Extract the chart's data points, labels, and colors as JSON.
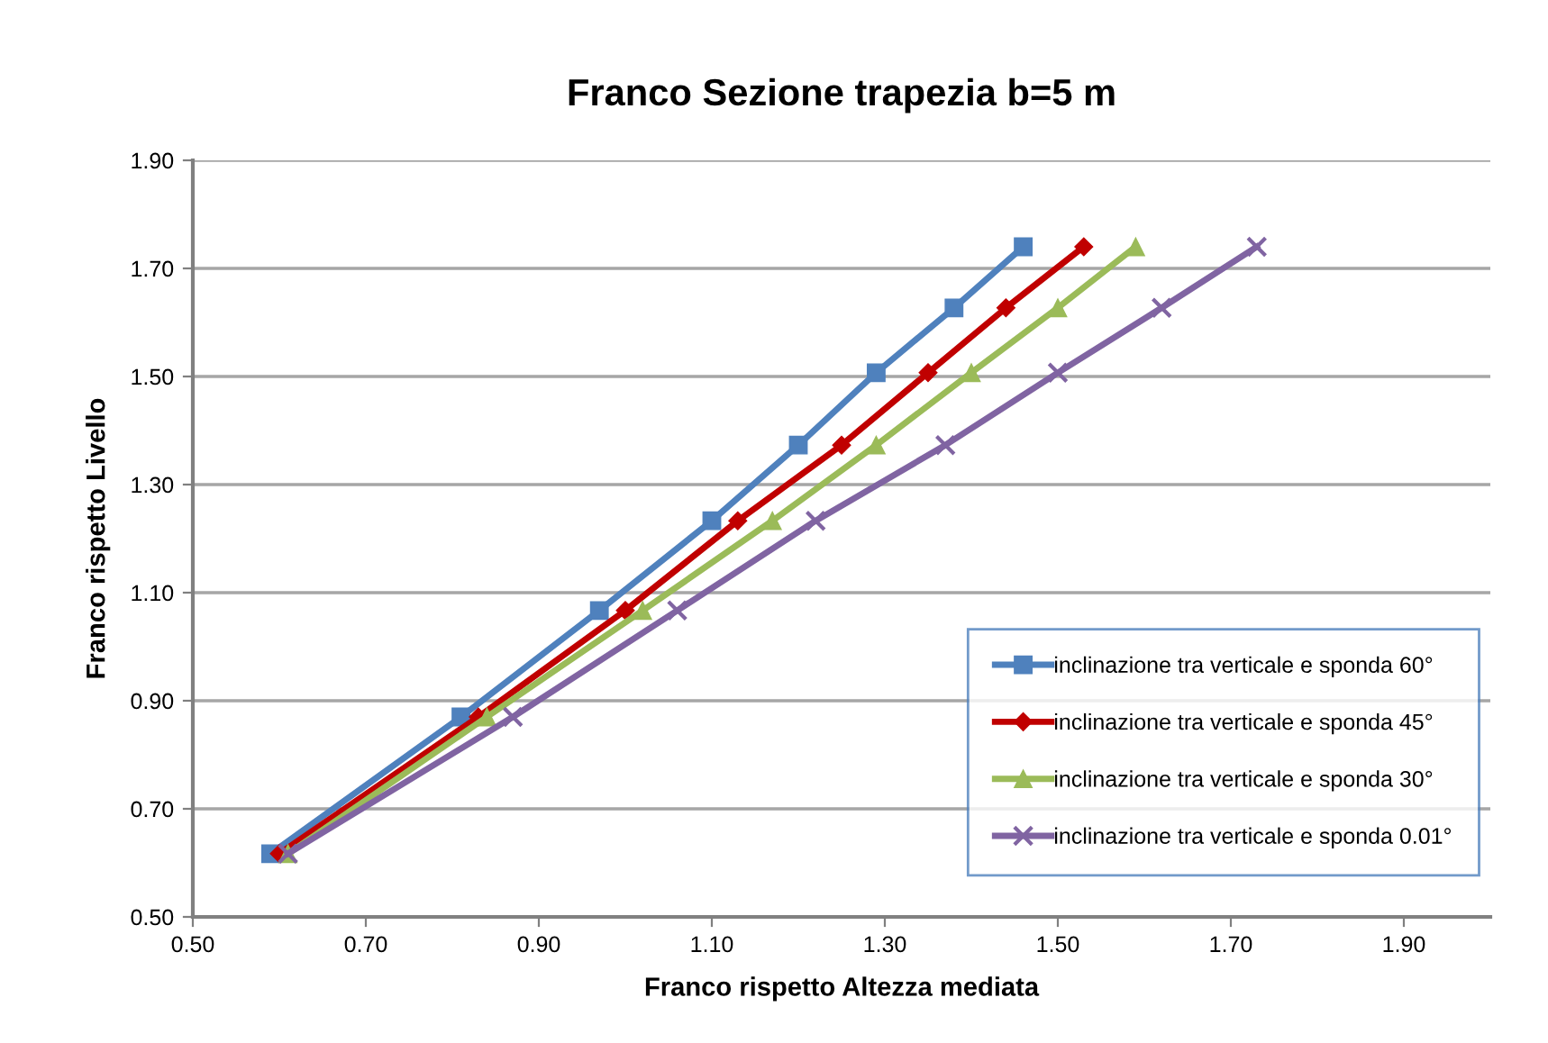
{
  "chart_data": {
    "type": "line",
    "title": "Franco Sezione trapezia b=5 m",
    "xlabel": "Franco rispetto Altezza mediata",
    "ylabel": "Franco rispetto Livello",
    "xlim": [
      0.5,
      2.0
    ],
    "xticks": [
      {
        "value": 0.5,
        "label": "0.50"
      },
      {
        "value": 0.7,
        "label": "0.70"
      },
      {
        "value": 0.9,
        "label": "0.90"
      },
      {
        "value": 1.1,
        "label": "1.10"
      },
      {
        "value": 1.3,
        "label": "1.30"
      },
      {
        "value": 1.5,
        "label": "1.50"
      },
      {
        "value": 1.7,
        "label": "1.70"
      },
      {
        "value": 1.9,
        "label": "1.90"
      }
    ],
    "ylim": [
      0.5,
      1.9
    ],
    "yticks": [
      {
        "value": 0.5,
        "label": "0.50"
      },
      {
        "value": 0.7,
        "label": "0.70"
      },
      {
        "value": 0.9,
        "label": "0.90"
      },
      {
        "value": 1.1,
        "label": "1.10"
      },
      {
        "value": 1.3,
        "label": "1.30"
      },
      {
        "value": 1.5,
        "label": "1.50"
      },
      {
        "value": 1.7,
        "label": "1.70"
      },
      {
        "value": 1.9,
        "label": "1.90"
      }
    ],
    "grid": "y",
    "legend": "lower right",
    "line_style": "solid",
    "series": [
      {
        "name": "inclinazione tra verticale e sponda 60°",
        "color": "#4f81bd",
        "marker": "square",
        "x": [
          0.59,
          0.81,
          0.97,
          1.1,
          1.2,
          1.29,
          1.38,
          1.46
        ],
        "values": [
          0.617,
          0.87,
          1.067,
          1.233,
          1.373,
          1.507,
          1.627,
          1.74
        ]
      },
      {
        "name": "inclinazione tra verticale e sponda 45°",
        "color": "#c00000",
        "marker": "diamond",
        "x": [
          0.6,
          0.83,
          1.0,
          1.13,
          1.25,
          1.35,
          1.44,
          1.53
        ],
        "values": [
          0.617,
          0.87,
          1.067,
          1.233,
          1.373,
          1.507,
          1.627,
          1.74
        ]
      },
      {
        "name": "inclinazione tra verticale e sponda 30°",
        "color": "#9bbb59",
        "marker": "triangle",
        "x": [
          0.61,
          0.84,
          1.02,
          1.17,
          1.29,
          1.4,
          1.5,
          1.59
        ],
        "values": [
          0.617,
          0.87,
          1.067,
          1.233,
          1.373,
          1.507,
          1.627,
          1.74
        ]
      },
      {
        "name": "inclinazione tra verticale e sponda 0.01°",
        "color": "#8064a2",
        "marker": "cross",
        "x": [
          0.61,
          0.87,
          1.06,
          1.22,
          1.37,
          1.5,
          1.62,
          1.73
        ],
        "values": [
          0.617,
          0.87,
          1.067,
          1.233,
          1.373,
          1.507,
          1.627,
          1.74
        ]
      }
    ]
  }
}
